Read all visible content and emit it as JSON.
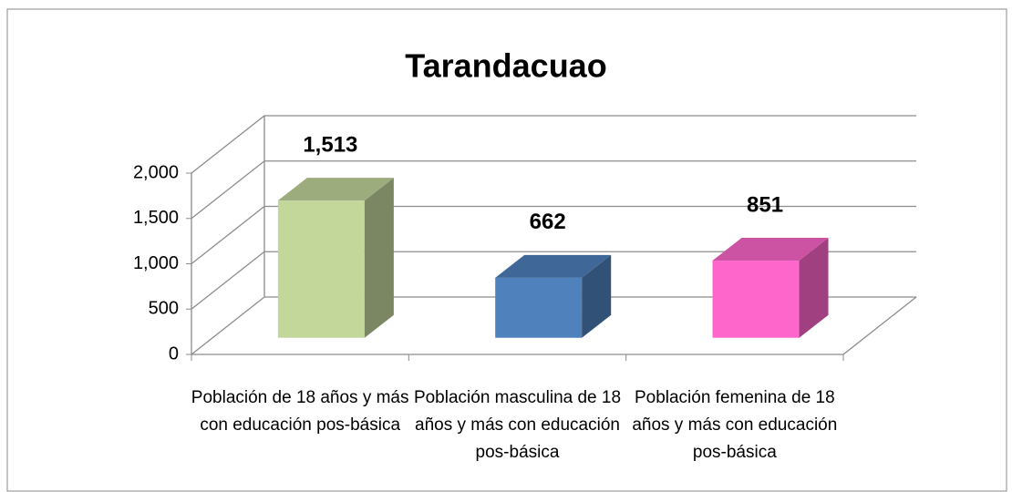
{
  "chart_data": {
    "type": "bar3d",
    "title": "Tarandacuao",
    "categories": [
      "Población de 18 años y más con educación pos-básica",
      "Población masculina de 18 años y más con educación pos-básica",
      "Población femenina de 18 años y más con educación pos-básica"
    ],
    "values": [
      1513,
      662,
      851
    ],
    "value_labels": [
      "1,513",
      "662",
      "851"
    ],
    "colors": [
      "#c4d79b",
      "#4f81bd",
      "#ff66cc"
    ],
    "ylim": [
      0,
      2000
    ],
    "yticks": [
      0,
      500,
      {
        "value": 1000,
        "label": "1,000"
      },
      {
        "value": 1500,
        "label": "1,500"
      },
      {
        "value": 2000,
        "label": "2,000"
      }
    ],
    "grid": true
  }
}
